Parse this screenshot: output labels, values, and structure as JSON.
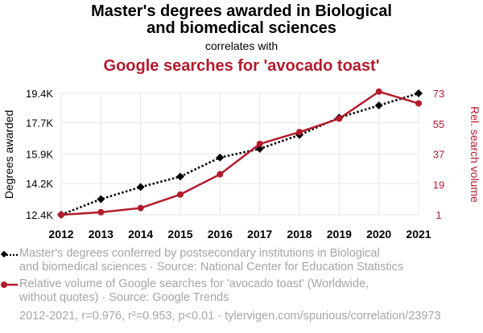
{
  "chart_data": {
    "type": "line",
    "title_line1": "Master's degrees awarded in Biological",
    "title_line2": "and biomedical sciences",
    "correlates_label": "correlates with",
    "subtitle": "Google searches for 'avocado toast'",
    "x": [
      2012,
      2013,
      2014,
      2015,
      2016,
      2017,
      2018,
      2019,
      2020,
      2021
    ],
    "x_tick_labels": [
      "2012",
      "2013",
      "2014",
      "2015",
      "2016",
      "2017",
      "2018",
      "2019",
      "2020",
      "2021"
    ],
    "ylabel_left": "Degrees awarded",
    "ylabel_right": "Rel. search volume",
    "yticks_left": [
      {
        "value": 12400,
        "label": "12.4K"
      },
      {
        "value": 14200,
        "label": "14.2K"
      },
      {
        "value": 15900,
        "label": "15.9K"
      },
      {
        "value": 17700,
        "label": "17.7K"
      },
      {
        "value": 19400,
        "label": "19.4K"
      }
    ],
    "yticks_right": [
      {
        "value": 1,
        "label": "1"
      },
      {
        "value": 19,
        "label": "19"
      },
      {
        "value": 37,
        "label": "37"
      },
      {
        "value": 55,
        "label": "55"
      },
      {
        "value": 73,
        "label": "73"
      }
    ],
    "ylim_left": [
      12400,
      19400
    ],
    "ylim_right": [
      1,
      73
    ],
    "series": [
      {
        "name": "Master's degrees conferred by postsecondary institutions in Biological and biomedical sciences",
        "axis": "left",
        "color": "#000000",
        "style": "dotted",
        "marker": "diamond",
        "values": [
          12400,
          13300,
          14000,
          14600,
          15700,
          16200,
          17000,
          18000,
          18700,
          19400
        ]
      },
      {
        "name": "Relative volume of Google searches for 'avocado toast' (Worldwide, without quotes)",
        "axis": "right",
        "color": "#b31b2d",
        "style": "solid",
        "marker": "circle",
        "values": [
          1,
          2.5,
          5,
          13,
          25,
          43,
          50,
          58,
          74,
          67
        ]
      }
    ],
    "legend": [
      {
        "line1": "Master's degrees conferred by postsecondary institutions in Biological",
        "line2": "and biomedical sciences · Source: National Center for Education Statistics"
      },
      {
        "line1": "Relative volume of Google searches for 'avocado toast' (Worldwide,",
        "line2": "without quotes) · Source: Google Trends"
      }
    ],
    "footer": "2012-2021, r=0.976, r²=0.953, p<0.01 · tylervigen.com/spurious/correlation/23973",
    "colors": {
      "left_series": "#000000",
      "right_series": "#b31b2d",
      "subtitle": "#b31b2d",
      "gray_text": "#a6a6a6"
    }
  }
}
